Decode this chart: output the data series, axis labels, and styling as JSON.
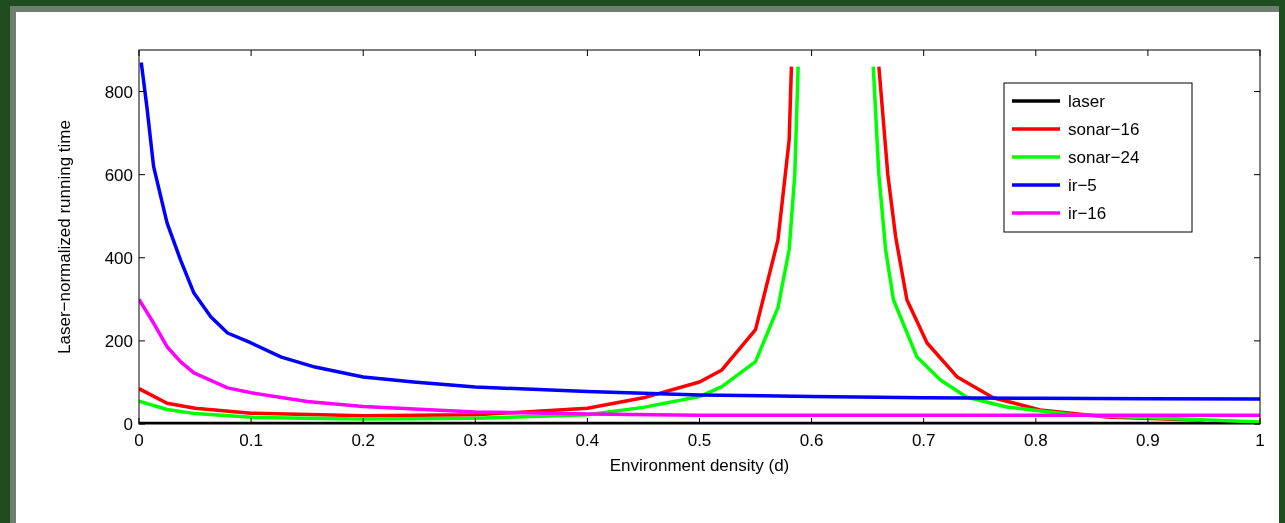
{
  "chart_data": {
    "type": "line",
    "xlabel": "Environment density (d)",
    "ylabel": "Laser−normalized running time",
    "xlim": [
      0,
      1
    ],
    "ylim": [
      0,
      900
    ],
    "xticks": [
      0,
      0.1,
      0.2,
      0.3,
      0.4,
      0.5,
      0.6,
      0.7,
      0.8,
      0.9,
      1
    ],
    "yticks": [
      0,
      200,
      400,
      600,
      800
    ],
    "legend": "top right",
    "grid": false,
    "line_style": "solid",
    "marker": "none",
    "series": [
      {
        "name": "laser",
        "color": "#000000",
        "x": [
          0,
          1
        ],
        "values": [
          1,
          1
        ]
      },
      {
        "name": "sonar−16",
        "color": "#ff0000",
        "x": [
          0,
          0.025,
          0.05,
          0.1,
          0.2,
          0.3,
          0.4,
          0.45,
          0.5,
          0.52,
          0.55,
          0.57,
          0.58,
          0.582,
          null,
          0.66,
          0.668,
          0.675,
          0.685,
          0.703,
          0.73,
          0.762,
          0.804,
          0.863,
          0.95
        ],
        "values": [
          85,
          50,
          38,
          26,
          20,
          22,
          38,
          63,
          101,
          130,
          227,
          443,
          684,
          860,
          null,
          860,
          600,
          450,
          299,
          195,
          113,
          63,
          34,
          17,
          9
        ]
      },
      {
        "name": "sonar−24",
        "color": "#00ff00",
        "x": [
          0,
          0.025,
          0.05,
          0.1,
          0.2,
          0.3,
          0.4,
          0.45,
          0.5,
          0.52,
          0.55,
          0.57,
          0.58,
          0.585,
          0.588,
          null,
          0.655,
          0.66,
          0.666,
          0.673,
          0.694,
          0.715,
          0.738,
          0.774,
          0.833,
          1
        ],
        "values": [
          55,
          35,
          25,
          16,
          12,
          14,
          22,
          40,
          66,
          90,
          150,
          280,
          420,
          600,
          860,
          null,
          860,
          600,
          420,
          299,
          161,
          106,
          65,
          41,
          22,
          5
        ]
      },
      {
        "name": "ir−5",
        "color": "#0000ff",
        "x": [
          0.002,
          0.007,
          0.013,
          0.025,
          0.037,
          0.049,
          0.064,
          0.079,
          0.1,
          0.127,
          0.157,
          0.2,
          0.245,
          0.3,
          0.4,
          0.5,
          0.6,
          0.7,
          0.8,
          0.9,
          1
        ],
        "values": [
          870,
          764,
          620,
          484,
          395,
          315,
          258,
          219,
          195,
          161,
          137,
          113,
          101,
          89,
          78,
          70,
          66,
          63,
          62,
          61,
          60
        ]
      },
      {
        "name": "ir−16",
        "color": "#ff00ff",
        "x": [
          0,
          0.013,
          0.025,
          0.037,
          0.049,
          0.079,
          0.1,
          0.15,
          0.2,
          0.3,
          0.4,
          0.5,
          0.7,
          1
        ],
        "values": [
          300,
          243,
          186,
          150,
          123,
          87,
          75,
          54,
          42,
          29,
          24,
          21,
          21,
          21
        ]
      }
    ]
  }
}
